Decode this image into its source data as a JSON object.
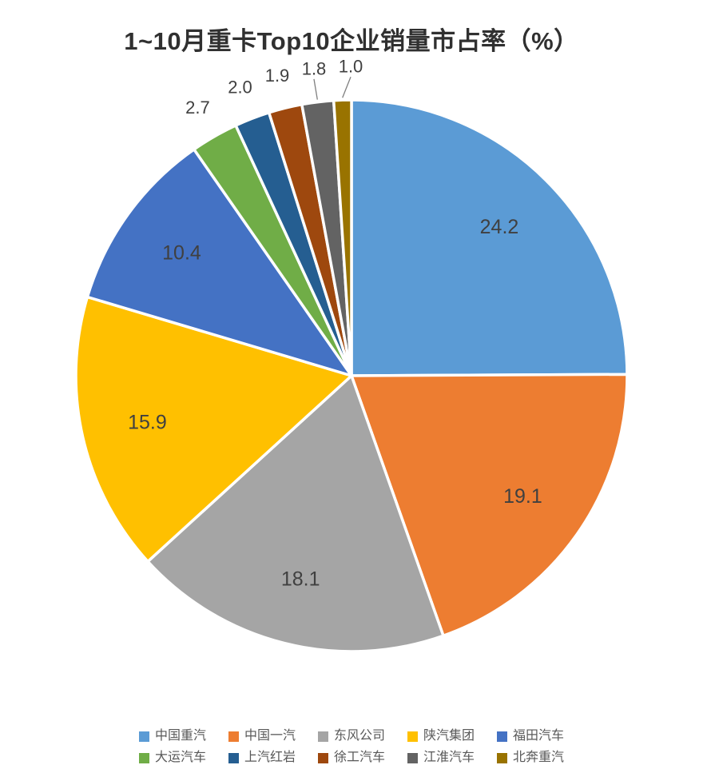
{
  "chart_data": {
    "type": "pie",
    "title": "1~10月重卡Top10企业销量市占率（%）",
    "unit": "%",
    "legend_position": "bottom",
    "start_angle_deg": 0,
    "direction": "clockwise",
    "value_decimals": 1,
    "background_color": "#ffffff",
    "slices": [
      {
        "label": "中国重汽",
        "value": 24.2,
        "color": "#5B9BD5",
        "label_position": "inside"
      },
      {
        "label": "中国一汽",
        "value": 19.1,
        "color": "#ED7D31",
        "label_position": "inside"
      },
      {
        "label": "东风公司",
        "value": 18.1,
        "color": "#A5A5A5",
        "label_position": "inside"
      },
      {
        "label": "陕汽集团",
        "value": 15.9,
        "color": "#FFC000",
        "label_position": "inside"
      },
      {
        "label": "福田汽车",
        "value": 10.4,
        "color": "#4472C4",
        "label_position": "inside"
      },
      {
        "label": "大运汽车",
        "value": 2.7,
        "color": "#70AD47",
        "label_position": "outside"
      },
      {
        "label": "上汽红岩",
        "value": 2.0,
        "color": "#255E91",
        "label_position": "outside"
      },
      {
        "label": "徐工汽车",
        "value": 1.9,
        "color": "#9E480E",
        "label_position": "outside"
      },
      {
        "label": "江淮汽车",
        "value": 1.8,
        "color": "#636363",
        "label_position": "outside",
        "leader": true
      },
      {
        "label": "北奔重汽",
        "value": 1.0,
        "color": "#997300",
        "label_position": "outside",
        "leader": true
      }
    ]
  }
}
